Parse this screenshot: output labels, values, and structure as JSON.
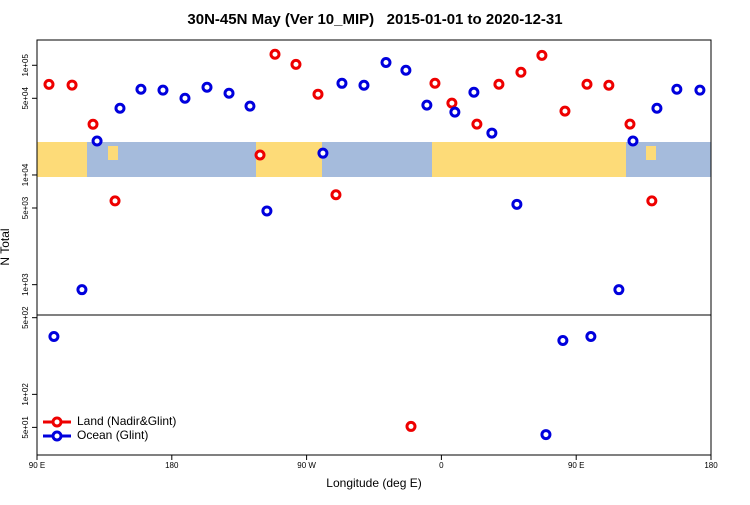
{
  "chart_data": {
    "type": "scatter",
    "title": "30N-45N May (Ver 10_MIP)   2015-01-01 to 2020-12-31",
    "x_label": "Longitude (deg E)",
    "y_label": "N Total",
    "log_y": true,
    "legend": "lower left",
    "xlim": [
      90,
      540
    ],
    "xticks": [
      {
        "value": 90,
        "label": "90 E"
      },
      {
        "value": 180,
        "label": "180"
      },
      {
        "value": 270,
        "label": "90 W"
      },
      {
        "value": 360,
        "label": "0"
      },
      {
        "value": 450,
        "label": "90 E"
      },
      {
        "value": 540,
        "label": "180"
      }
    ],
    "ylim": [
      28,
      170000
    ],
    "yticks": [
      {
        "value": 100000,
        "label": "1e+05"
      },
      {
        "value": 50000,
        "label": "5e+04"
      },
      {
        "value": 10000,
        "label": "1e+04"
      },
      {
        "value": 5000,
        "label": "5e+03"
      },
      {
        "value": 1000,
        "label": "1e+03"
      },
      {
        "value": 500,
        "label": "5e+02"
      },
      {
        "value": 100,
        "label": "1e+02"
      },
      {
        "value": 50,
        "label": "5e+01"
      }
    ],
    "series": [
      {
        "name": "Land (Nadir&Glint)",
        "color": "#ee0000",
        "x": [
          98.0,
          113.4,
          127.4,
          142.1,
          238.9,
          248.9,
          262.9,
          277.6,
          289.6,
          339.7,
          355.7,
          367.0,
          383.7,
          398.4,
          413.1,
          427.1,
          442.5,
          457.2,
          471.8,
          485.9,
          500.5
        ],
        "values": [
          67000,
          66000,
          29000,
          5800,
          15200,
          126000,
          102000,
          54500,
          6600,
          51,
          68600,
          45200,
          29100,
          67100,
          86300,
          123000,
          38200,
          67100,
          65800,
          29100,
          5800
        ]
      },
      {
        "name": "Ocean (Glint)",
        "color": "#0000dd",
        "x": [
          101.3,
          120.0,
          130.1,
          145.4,
          159.4,
          174.1,
          188.8,
          203.5,
          218.2,
          232.2,
          243.5,
          280.9,
          293.6,
          308.3,
          323.0,
          336.3,
          350.3,
          369.0,
          381.7,
          393.7,
          410.4,
          429.8,
          441.1,
          459.8,
          478.5,
          487.9,
          503.9,
          517.2,
          532.6
        ],
        "values": [
          337,
          900,
          20400,
          40600,
          60500,
          59300,
          50100,
          63100,
          55600,
          42400,
          4700,
          15800,
          68500,
          65800,
          106000,
          90100,
          43300,
          37400,
          56800,
          24100,
          5400,
          43,
          310,
          337,
          900,
          20400,
          40600,
          60500,
          59300
        ]
      }
    ]
  }
}
